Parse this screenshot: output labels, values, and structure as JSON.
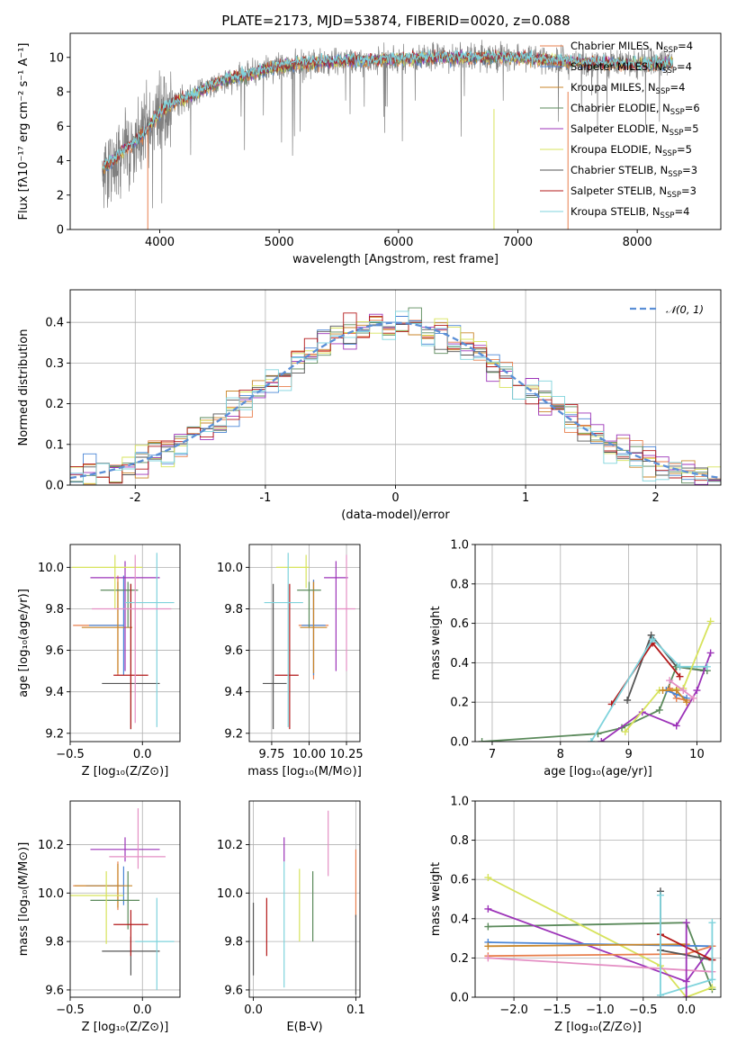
{
  "figure": {
    "title": "PLATE=2173, MJD=53874, FIBERID=0020, z=0.088"
  },
  "chart_data": [
    {
      "id": "spectrum",
      "type": "line",
      "xlabel": "wavelength [Angstrom, rest frame]",
      "ylabel": "Flux [fλ10⁻¹⁷ erg cm⁻² s⁻¹ A⁻¹]",
      "xlim": [
        3250,
        8700
      ],
      "ylim": [
        0,
        11.4
      ],
      "xticks": [
        4000,
        5000,
        6000,
        7000,
        8000
      ],
      "yticks": [
        0,
        2,
        4,
        6,
        8,
        10
      ],
      "grid": false,
      "legend_position": "top-right",
      "legend": [
        {
          "label": "Chabrier MILES, N",
          "sub": "SSP",
          "suffix": "=4",
          "color": "#e87f4d"
        },
        {
          "label": "Salpeter MILES, N",
          "sub": "SSP",
          "suffix": "=4",
          "color": "#4b86d6"
        },
        {
          "label": "Kroupa MILES, N",
          "sub": "SSP",
          "suffix": "=4",
          "color": "#c9862a"
        },
        {
          "label": "Chabrier ELODIE, N",
          "sub": "SSP",
          "suffix": "=6",
          "color": "#5b8a5b"
        },
        {
          "label": "Salpeter ELODIE, N",
          "sub": "SSP",
          "suffix": "=5",
          "color": "#9c33b8"
        },
        {
          "label": "Kroupa ELODIE, N",
          "sub": "SSP",
          "suffix": "=5",
          "color": "#d7e35c"
        },
        {
          "label": "Chabrier STELIB, N",
          "sub": "SSP",
          "suffix": "=3",
          "color": "#555555"
        },
        {
          "label": "Salpeter STELIB, N",
          "sub": "SSP",
          "suffix": "=3",
          "color": "#b3191a"
        },
        {
          "label": "Kroupa STELIB, N",
          "sub": "SSP",
          "suffix": "=4",
          "color": "#7fd3dc"
        }
      ],
      "data_color": "#808080",
      "continuum": {
        "x": [
          3520,
          3700,
          3900,
          4000,
          4100,
          4300,
          4500,
          4800,
          5000,
          5300,
          5600,
          6000,
          6400,
          6700,
          7000,
          7300,
          7600,
          8000,
          8300
        ],
        "y": [
          3.5,
          4.6,
          5.8,
          6.8,
          7.3,
          7.9,
          8.6,
          9.1,
          9.5,
          9.7,
          9.8,
          9.9,
          10.0,
          10.0,
          10.0,
          9.8,
          9.7,
          9.6,
          9.7
        ]
      },
      "data_xrange": [
        3520,
        8300
      ],
      "model_xrange": [
        3520,
        8300
      ]
    },
    {
      "id": "residuals",
      "type": "histogram",
      "xlabel": "(data-model)/error",
      "ylabel": "Normed distribution",
      "xlim": [
        -2.5,
        2.5
      ],
      "ylim": [
        0,
        0.48
      ],
      "xticks": [
        -2,
        -1,
        0,
        1,
        2
      ],
      "yticks": [
        0.0,
        0.1,
        0.2,
        0.3,
        0.4
      ],
      "grid": true,
      "legend_position": "top-right",
      "gaussian_label": "𝒩(0, 1)",
      "gaussian_color": "#5b8fd6",
      "bin_width": 0.1
    },
    {
      "id": "age-vs-Z",
      "type": "errorbar",
      "xlabel": "Z [log₁₀(Z/Z⊙)]",
      "ylabel": "age  [log₁₀(age/yr)]",
      "xlim": [
        -0.5,
        0.26
      ],
      "ylim": [
        9.16,
        10.11
      ],
      "xticks": [
        -0.5,
        0.0
      ],
      "xticklabels": [
        "−0.5",
        "0.0"
      ],
      "yticks": [
        9.2,
        9.4,
        9.6,
        9.8,
        10.0
      ],
      "grid": true,
      "points": [
        {
          "x": -0.17,
          "y": 9.72,
          "xerr": [
            0.31,
            0.0
          ],
          "yerr": [
            0.24,
            0.24
          ],
          "color": "#e87f4d"
        },
        {
          "x": -0.13,
          "y": 9.72,
          "xerr": [
            0.24,
            0.0
          ],
          "yerr": [
            0.24,
            0.24
          ],
          "color": "#4b86d6"
        },
        {
          "x": -0.17,
          "y": 9.71,
          "xerr": [
            0.25,
            0.1
          ],
          "yerr": [
            0.22,
            0.22
          ],
          "color": "#c9862a"
        },
        {
          "x": -0.1,
          "y": 9.89,
          "xerr": [
            0.19,
            0.07
          ],
          "yerr": [
            0.18,
            0.04
          ],
          "color": "#5b8a5b"
        },
        {
          "x": -0.12,
          "y": 9.95,
          "xerr": [
            0.24,
            0.24
          ],
          "yerr": [
            0.45,
            0.08
          ],
          "color": "#9c33b8"
        },
        {
          "x": -0.19,
          "y": 10.0,
          "xerr": [
            0.3,
            0.19
          ],
          "yerr": [
            0.2,
            0.06
          ],
          "color": "#d7e35c"
        },
        {
          "x": -0.08,
          "y": 9.44,
          "xerr": [
            0.2,
            0.2
          ],
          "yerr": [
            0.22,
            0.48
          ],
          "color": "#555555"
        },
        {
          "x": -0.08,
          "y": 9.48,
          "xerr": [
            0.12,
            0.12
          ],
          "yerr": [
            0.26,
            0.44
          ],
          "color": "#b3191a"
        },
        {
          "x": 0.1,
          "y": 9.83,
          "xerr": [
            0.22,
            0.12
          ],
          "yerr": [
            0.6,
            0.24
          ],
          "color": "#7fd3dc"
        },
        {
          "x": -0.05,
          "y": 9.8,
          "xerr": [
            0.3,
            0.25
          ],
          "yerr": [
            0.55,
            0.26
          ],
          "color": "#e48fc4"
        }
      ]
    },
    {
      "id": "age-vs-mass",
      "type": "errorbar",
      "xlabel": "mass [log₁₀(M/M⊙)]",
      "ylabel": "",
      "xlim": [
        9.6,
        10.34
      ],
      "ylim": [
        9.16,
        10.11
      ],
      "xticks": [
        9.75,
        10.0,
        10.25
      ],
      "xticklabels": [
        "9.75",
        "10.00",
        "10.25"
      ],
      "yticks": [
        9.2,
        9.4,
        9.6,
        9.8,
        10.0
      ],
      "grid": true,
      "points": [
        {
          "x": 10.03,
          "y": 9.72,
          "xerr": [
            0.1,
            0.1
          ],
          "yerr": [
            0.26,
            0.22
          ],
          "color": "#e87f4d"
        },
        {
          "x": 10.03,
          "y": 9.72,
          "xerr": [
            0.08,
            0.08
          ],
          "yerr": [
            0.24,
            0.22
          ],
          "color": "#4b86d6"
        },
        {
          "x": 10.03,
          "y": 9.71,
          "xerr": [
            0.09,
            0.09
          ],
          "yerr": [
            0.22,
            0.22
          ],
          "color": "#c9862a"
        },
        {
          "x": 10.0,
          "y": 9.89,
          "xerr": [
            0.08,
            0.08
          ],
          "yerr": [
            0.18,
            0.04
          ],
          "color": "#5b8a5b"
        },
        {
          "x": 10.18,
          "y": 9.95,
          "xerr": [
            0.08,
            0.08
          ],
          "yerr": [
            0.45,
            0.08
          ],
          "color": "#9c33b8"
        },
        {
          "x": 9.98,
          "y": 10.0,
          "xerr": [
            0.2,
            0.02
          ],
          "yerr": [
            0.1,
            0.06
          ],
          "color": "#d7e35c"
        },
        {
          "x": 9.76,
          "y": 9.44,
          "xerr": [
            0.07,
            0.09
          ],
          "yerr": [
            0.22,
            0.48
          ],
          "color": "#555555"
        },
        {
          "x": 9.87,
          "y": 9.48,
          "xerr": [
            0.1,
            0.06
          ],
          "yerr": [
            0.26,
            0.44
          ],
          "color": "#b3191a"
        },
        {
          "x": 9.86,
          "y": 9.83,
          "xerr": [
            0.16,
            0.1
          ],
          "yerr": [
            0.6,
            0.24
          ],
          "color": "#7fd3dc"
        },
        {
          "x": 10.25,
          "y": 9.8,
          "xerr": [
            0.06,
            0.06
          ],
          "yerr": [
            0.3,
            0.26
          ],
          "color": "#e48fc4"
        }
      ]
    },
    {
      "id": "weight-vs-age",
      "type": "line",
      "xlabel": "age  [log₁₀(age/yr)]",
      "ylabel": "mass weight",
      "xlim": [
        6.75,
        10.35
      ],
      "ylim": [
        0,
        1.0
      ],
      "xticks": [
        7,
        8,
        9,
        10
      ],
      "yticks": [
        0.0,
        0.2,
        0.4,
        0.6,
        0.8,
        1.0
      ],
      "grid": true,
      "series": [
        {
          "color": "#555555",
          "x": [
            8.98,
            9.33,
            9.7,
            10.1
          ],
          "y": [
            0.21,
            0.54,
            0.38,
            0.36
          ]
        },
        {
          "color": "#5b8a5b",
          "x": [
            6.85,
            8.55,
            8.9,
            9.45,
            9.7,
            10.15
          ],
          "y": [
            0.0,
            0.04,
            0.07,
            0.16,
            0.38,
            0.36
          ]
        },
        {
          "color": "#b3191a",
          "x": [
            8.75,
            9.35,
            9.75
          ],
          "y": [
            0.19,
            0.5,
            0.33
          ]
        },
        {
          "color": "#9c33b8",
          "x": [
            8.6,
            9.2,
            9.7,
            10.0,
            10.2
          ],
          "y": [
            0.0,
            0.15,
            0.08,
            0.26,
            0.45
          ]
        },
        {
          "color": "#7fd3dc",
          "x": [
            8.45,
            9.35,
            9.75,
            10.15
          ],
          "y": [
            0.0,
            0.52,
            0.38,
            0.38
          ]
        },
        {
          "color": "#d7e35c",
          "x": [
            8.95,
            9.45,
            9.8,
            10.2
          ],
          "y": [
            0.05,
            0.26,
            0.27,
            0.61
          ]
        },
        {
          "color": "#e87f4d",
          "x": [
            9.6,
            9.7,
            9.85
          ],
          "y": [
            0.27,
            0.22,
            0.21
          ]
        },
        {
          "color": "#4b86d6",
          "x": [
            9.55,
            9.7,
            9.85
          ],
          "y": [
            0.26,
            0.24,
            0.22
          ]
        },
        {
          "color": "#c9862a",
          "x": [
            9.5,
            9.7,
            9.85
          ],
          "y": [
            0.26,
            0.26,
            0.2
          ]
        },
        {
          "color": "#e48fc4",
          "x": [
            9.6,
            9.8,
            9.95
          ],
          "y": [
            0.31,
            0.26,
            0.22
          ]
        }
      ]
    },
    {
      "id": "mass-vs-Z",
      "type": "errorbar",
      "xlabel": "Z [log₁₀(Z/Z⊙)]",
      "ylabel": "mass [log₁₀(M/M⊙)]",
      "xlim": [
        -0.5,
        0.26
      ],
      "ylim": [
        9.57,
        10.38
      ],
      "xticks": [
        -0.5,
        0.0
      ],
      "xticklabels": [
        "−0.5",
        "0.0"
      ],
      "yticks": [
        9.6,
        9.8,
        10.0,
        10.2
      ],
      "grid": true,
      "points": [
        {
          "x": -0.17,
          "y": 10.03,
          "xerr": [
            0.31,
            0.0
          ],
          "yerr": [
            0.1,
            0.1
          ],
          "color": "#e87f4d"
        },
        {
          "x": -0.13,
          "y": 10.03,
          "xerr": [
            0.26,
            0.0
          ],
          "yerr": [
            0.08,
            0.08
          ],
          "color": "#4b86d6"
        },
        {
          "x": -0.17,
          "y": 10.03,
          "xerr": [
            0.3,
            0.1
          ],
          "yerr": [
            0.09,
            0.09
          ],
          "color": "#c9862a"
        },
        {
          "x": -0.1,
          "y": 9.97,
          "xerr": [
            0.26,
            0.08
          ],
          "yerr": [
            0.12,
            0.12
          ],
          "color": "#5b8a5b"
        },
        {
          "x": -0.12,
          "y": 10.18,
          "xerr": [
            0.24,
            0.24
          ],
          "yerr": [
            0.05,
            0.05
          ],
          "color": "#9c33b8"
        },
        {
          "x": -0.25,
          "y": 9.99,
          "xerr": [
            0.25,
            0.12
          ],
          "yerr": [
            0.2,
            0.1
          ],
          "color": "#d7e35c"
        },
        {
          "x": -0.08,
          "y": 9.76,
          "xerr": [
            0.2,
            0.2
          ],
          "yerr": [
            0.1,
            0.06
          ],
          "color": "#555555"
        },
        {
          "x": -0.08,
          "y": 9.87,
          "xerr": [
            0.12,
            0.12
          ],
          "yerr": [
            0.13,
            0.06
          ],
          "color": "#b3191a"
        },
        {
          "x": 0.1,
          "y": 9.8,
          "xerr": [
            0.15,
            0.12
          ],
          "yerr": [
            0.2,
            0.18
          ],
          "color": "#7fd3dc"
        },
        {
          "x": -0.03,
          "y": 10.15,
          "xerr": [
            0.2,
            0.19
          ],
          "yerr": [
            0.05,
            0.2
          ],
          "color": "#e48fc4"
        }
      ]
    },
    {
      "id": "mass-vs-EBV",
      "type": "errorbar",
      "xlabel": "E(B-V)",
      "ylabel": "",
      "xlim": [
        -0.004,
        0.104
      ],
      "ylim": [
        9.57,
        10.38
      ],
      "xticks": [
        0.0,
        0.1
      ],
      "xticklabels": [
        "0.0",
        "0.1"
      ],
      "yticks": [
        9.6,
        9.8,
        10.0,
        10.2
      ],
      "grid": true,
      "points": [
        {
          "x": 0.0,
          "y": 9.81,
          "xerr": [
            0,
            0
          ],
          "yerr": [
            0.15,
            0.15
          ],
          "color": "#555555"
        },
        {
          "x": 0.013,
          "y": 9.86,
          "xerr": [
            0,
            0
          ],
          "yerr": [
            0.12,
            0.12
          ],
          "color": "#b3191a"
        },
        {
          "x": 0.03,
          "y": 10.18,
          "xerr": [
            0,
            0
          ],
          "yerr": [
            0.05,
            0.05
          ],
          "color": "#9c33b8"
        },
        {
          "x": 0.03,
          "y": 9.91,
          "xerr": [
            0,
            0
          ],
          "yerr": [
            0.3,
            0.22
          ],
          "color": "#7fd3dc"
        },
        {
          "x": 0.045,
          "y": 9.95,
          "xerr": [
            0,
            0
          ],
          "yerr": [
            0.15,
            0.15
          ],
          "color": "#d7e35c"
        },
        {
          "x": 0.058,
          "y": 9.95,
          "xerr": [
            0,
            0
          ],
          "yerr": [
            0.15,
            0.14
          ],
          "color": "#5b8a5b"
        },
        {
          "x": 0.073,
          "y": 10.21,
          "xerr": [
            0,
            0
          ],
          "yerr": [
            0.14,
            0.13
          ],
          "color": "#e48fc4"
        },
        {
          "x": 0.1,
          "y": 10.04,
          "xerr": [
            0,
            0
          ],
          "yerr": [
            0.14,
            0.14
          ],
          "color": "#e87f4d"
        },
        {
          "x": 0.1,
          "y": 9.76,
          "xerr": [
            0,
            0
          ],
          "yerr": [
            0.18,
            0.15
          ],
          "color": "#555555"
        }
      ]
    },
    {
      "id": "weight-vs-Z",
      "type": "line",
      "xlabel": "Z [log₁₀(Z/Z⊙)]",
      "ylabel": "mass weight",
      "xlim": [
        -2.45,
        0.4
      ],
      "ylim": [
        0,
        1.0
      ],
      "xticks": [
        -2.0,
        -1.5,
        -1.0,
        -0.5,
        0.0
      ],
      "xticklabels": [
        "−2.0",
        "−1.5",
        "−1.0",
        "−0.5",
        "0.0"
      ],
      "yticks": [
        0.0,
        0.2,
        0.4,
        0.6,
        0.8,
        1.0
      ],
      "grid": true,
      "series": [
        {
          "color": "#5b8a5b",
          "x": [
            -2.3,
            0.0,
            0.3
          ],
          "y": [
            0.36,
            0.38,
            0.04
          ]
        },
        {
          "color": "#d7e35c",
          "x": [
            -2.3,
            -0.3,
            0.0,
            0.3
          ],
          "y": [
            0.61,
            0.16,
            0.0,
            0.05
          ]
        },
        {
          "color": "#9c33b8",
          "x": [
            -2.3,
            0.0,
            0.3
          ],
          "y": [
            0.45,
            0.08,
            0.26
          ]
        },
        {
          "color": "#4b86d6",
          "x": [
            -2.3,
            0.3
          ],
          "y": [
            0.28,
            0.26
          ]
        },
        {
          "color": "#c9862a",
          "x": [
            -2.3,
            0.0
          ],
          "y": [
            0.26,
            0.27
          ]
        },
        {
          "color": "#e87f4d",
          "x": [
            -2.3,
            0.0,
            0.3
          ],
          "y": [
            0.21,
            0.22,
            0.26
          ]
        },
        {
          "color": "#e48fc4",
          "x": [
            -2.3,
            0.3
          ],
          "y": [
            0.2,
            0.13
          ]
        },
        {
          "color": "#555555",
          "x": [
            -0.3,
            -0.3,
            0.3
          ],
          "y": [
            0.54,
            0.24,
            0.19
          ]
        },
        {
          "color": "#b3191a",
          "x": [
            -0.3,
            0.3
          ],
          "y": [
            0.32,
            0.19
          ]
        },
        {
          "color": "#7fd3dc",
          "x": [
            -0.3,
            -0.3,
            0.3,
            0.3
          ],
          "y": [
            0.52,
            0.01,
            0.09,
            0.38
          ]
        },
        {
          "color": "#9c33b8",
          "x": [
            0.0,
            0.0
          ],
          "y": [
            0.38,
            0.0
          ]
        }
      ]
    }
  ]
}
